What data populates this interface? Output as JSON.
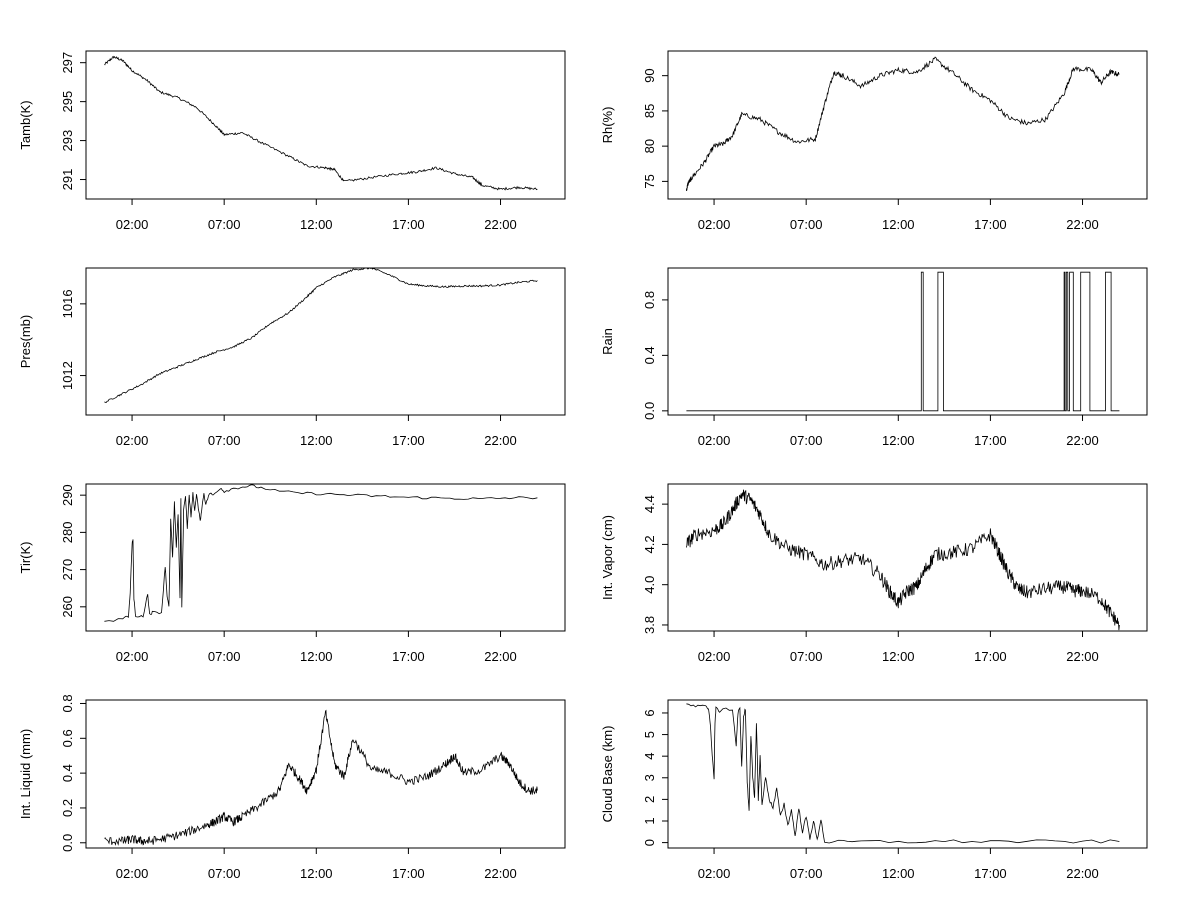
{
  "chart_data": [
    {
      "type": "line",
      "ylabel": "Tamb(K)",
      "xlim": [
        -0.5,
        25.5
      ],
      "ylim": [
        290.0,
        297.6
      ],
      "x_ticks": [
        2,
        7,
        12,
        17,
        22
      ],
      "x_tick_labels": [
        "02:00",
        "07:00",
        "12:00",
        "17:00",
        "22:00"
      ],
      "y_ticks": [
        291,
        293,
        295,
        297
      ],
      "y_tick_labels": [
        "291",
        "293",
        "295",
        "297"
      ],
      "noise": 0.06,
      "steps": 20,
      "series": [
        {
          "x": [
            0.5,
            1.0,
            1.5,
            2.0,
            2.8,
            3.5,
            4.5,
            5.5,
            6.5,
            7.0,
            8.0,
            9.0,
            10.5,
            11.5,
            12.5,
            13.0,
            13.5,
            15.0,
            16.5,
            17.5,
            18.5,
            19.5,
            20.5,
            21.0,
            22.0,
            23.0,
            24.0
          ],
          "values": [
            296.9,
            297.3,
            297.1,
            296.6,
            296.1,
            295.5,
            295.2,
            294.7,
            293.8,
            293.3,
            293.4,
            292.9,
            292.2,
            291.7,
            291.6,
            291.5,
            290.9,
            291.1,
            291.3,
            291.4,
            291.6,
            291.3,
            291.1,
            290.7,
            290.5,
            290.6,
            290.5
          ]
        }
      ]
    },
    {
      "type": "line",
      "ylabel": "Rh(%)",
      "xlim": [
        -0.5,
        25.5
      ],
      "ylim": [
        72.5,
        93.5
      ],
      "x_ticks": [
        2,
        7,
        12,
        17,
        22
      ],
      "x_tick_labels": [
        "02:00",
        "07:00",
        "12:00",
        "17:00",
        "22:00"
      ],
      "y_ticks": [
        75,
        80,
        85,
        90
      ],
      "y_tick_labels": [
        "75",
        "80",
        "85",
        "90"
      ],
      "noise": 0.35,
      "steps": 20,
      "series": [
        {
          "x": [
            0.5,
            0.6,
            0.8,
            1.5,
            2.0,
            2.5,
            3.0,
            3.5,
            4.5,
            5.5,
            6.5,
            7.5,
            8.0,
            8.5,
            9.0,
            10.0,
            11.0,
            12.0,
            13.0,
            14.0,
            15.0,
            16.0,
            17.0,
            18.0,
            19.0,
            20.0,
            21.0,
            21.5,
            22.5,
            23.0,
            23.5,
            24.0
          ],
          "values": [
            73.8,
            74.8,
            75.5,
            77.8,
            80.0,
            80.3,
            81.5,
            84.5,
            83.8,
            82.0,
            80.6,
            81.0,
            86.0,
            90.5,
            90.0,
            88.5,
            90.0,
            90.8,
            90.5,
            92.3,
            90.3,
            88.0,
            86.5,
            84.0,
            83.2,
            83.8,
            87.5,
            91.0,
            90.8,
            89.0,
            90.5,
            90.2
          ]
        }
      ]
    },
    {
      "type": "line",
      "ylabel": "Pres(mb)",
      "xlim": [
        -0.5,
        25.5
      ],
      "ylim": [
        1009.8,
        1018.0
      ],
      "x_ticks": [
        2,
        7,
        12,
        17,
        22
      ],
      "x_tick_labels": [
        "02:00",
        "07:00",
        "12:00",
        "17:00",
        "22:00"
      ],
      "y_ticks": [
        1012,
        1016
      ],
      "y_tick_labels": [
        "1012",
        "1016"
      ],
      "noise": 0.05,
      "steps": 20,
      "series": [
        {
          "x": [
            0.5,
            1.5,
            2.5,
            3.5,
            4.5,
            5.5,
            6.5,
            7.5,
            8.5,
            9.5,
            10.5,
            11.5,
            12.0,
            13.0,
            14.0,
            15.0,
            16.0,
            17.0,
            18.0,
            19.0,
            20.0,
            21.0,
            22.0,
            23.0,
            24.0
          ],
          "values": [
            1010.5,
            1011.0,
            1011.5,
            1012.1,
            1012.5,
            1012.9,
            1013.3,
            1013.6,
            1014.1,
            1014.9,
            1015.5,
            1016.4,
            1016.9,
            1017.5,
            1017.9,
            1018.0,
            1017.6,
            1017.1,
            1017.0,
            1016.95,
            1017.0,
            1017.0,
            1017.05,
            1017.2,
            1017.3
          ]
        }
      ]
    },
    {
      "type": "line",
      "ylabel": "Rain",
      "xlim": [
        -0.5,
        25.5
      ],
      "ylim": [
        -0.03,
        1.03
      ],
      "x_ticks": [
        2,
        7,
        12,
        17,
        22
      ],
      "x_tick_labels": [
        "02:00",
        "07:00",
        "12:00",
        "17:00",
        "22:00"
      ],
      "y_ticks": [
        0.0,
        0.4,
        0.8
      ],
      "y_tick_labels": [
        "0.0",
        "0.4",
        "0.8"
      ],
      "noise": 0,
      "steps": 0,
      "series": [
        {
          "x": [
            0.5,
            13.25,
            13.25,
            13.35,
            13.35,
            14.15,
            14.15,
            14.45,
            14.45,
            21.0,
            21.0,
            21.05,
            21.05,
            21.12,
            21.12,
            21.2,
            21.2,
            21.3,
            21.3,
            21.5,
            21.5,
            21.9,
            21.9,
            22.4,
            22.4,
            23.25,
            23.25,
            23.55,
            23.55,
            24.0
          ],
          "values": [
            0,
            0,
            1,
            1,
            0,
            0,
            1,
            1,
            0,
            0,
            1,
            1,
            0,
            0,
            1,
            1,
            0,
            0,
            1,
            1,
            0,
            0,
            1,
            1,
            0,
            0,
            1,
            1,
            0,
            0
          ]
        }
      ]
    },
    {
      "type": "line",
      "ylabel": "Tir(K)",
      "xlim": [
        -0.5,
        25.5
      ],
      "ylim": [
        253.5,
        293.0
      ],
      "x_ticks": [
        2,
        7,
        12,
        17,
        22
      ],
      "x_tick_labels": [
        "02:00",
        "07:00",
        "12:00",
        "17:00",
        "22:00"
      ],
      "y_ticks": [
        260,
        270,
        280,
        290
      ],
      "y_tick_labels": [
        "260",
        "270",
        "280",
        "290"
      ],
      "noise": 0.35,
      "steps": 4,
      "series": [
        {
          "x": [
            0.5,
            1.5,
            1.8,
            1.9,
            2.0,
            2.05,
            2.1,
            2.2,
            2.6,
            2.85,
            2.95,
            3.1,
            3.6,
            3.8,
            3.9,
            4.0,
            4.1,
            4.2,
            4.3,
            4.4,
            4.5,
            4.6,
            4.65,
            4.7,
            4.8,
            4.9,
            5.0,
            5.1,
            5.2,
            5.3,
            5.4,
            5.5,
            5.7,
            5.8,
            5.9,
            6.0,
            6.2,
            6.4,
            6.8,
            7.0,
            7.5,
            8.0,
            8.5,
            9.0,
            10.0,
            11.0,
            12.0,
            13.0,
            14.0,
            15.0,
            16.0,
            17.0,
            18.0,
            19.0,
            20.0,
            21.0,
            22.0,
            23.0,
            24.0
          ],
          "values": [
            255.8,
            257.0,
            257.2,
            264.0,
            277.0,
            278.0,
            262.0,
            257.2,
            257.5,
            263.5,
            258.0,
            258.5,
            258.5,
            271.0,
            263.0,
            260.0,
            283.5,
            273.0,
            288.0,
            276.0,
            285.0,
            262.0,
            289.0,
            260.0,
            286.0,
            290.0,
            281.0,
            290.0,
            284.0,
            290.5,
            286.0,
            290.0,
            283.0,
            287.0,
            290.5,
            287.5,
            290.5,
            290.0,
            292.0,
            291.0,
            291.8,
            292.2,
            292.5,
            292.0,
            291.0,
            290.6,
            290.4,
            290.2,
            290.0,
            289.8,
            289.6,
            289.4,
            289.3,
            289.2,
            289.1,
            289.0,
            289.2,
            289.3,
            289.3
          ]
        }
      ]
    },
    {
      "type": "line",
      "ylabel": "Int. Vapor (cm)",
      "xlim": [
        -0.5,
        25.5
      ],
      "ylim": [
        3.77,
        4.5
      ],
      "x_ticks": [
        2,
        7,
        12,
        17,
        22
      ],
      "x_tick_labels": [
        "02:00",
        "07:00",
        "12:00",
        "17:00",
        "22:00"
      ],
      "y_ticks": [
        3.8,
        4.0,
        4.2,
        4.4
      ],
      "y_tick_labels": [
        "3.8",
        "4.0",
        "4.2",
        "4.4"
      ],
      "noise": 0.035,
      "steps": 20,
      "series": [
        {
          "x": [
            0.5,
            1.0,
            2.0,
            2.5,
            3.0,
            3.5,
            4.0,
            4.5,
            5.0,
            6.0,
            7.0,
            8.0,
            9.0,
            10.0,
            11.0,
            11.5,
            12.0,
            12.5,
            13.0,
            13.5,
            14.0,
            15.0,
            16.0,
            17.0,
            17.5,
            18.0,
            18.5,
            19.0,
            20.0,
            21.0,
            21.5,
            22.0,
            23.0,
            23.5,
            24.0
          ],
          "values": [
            4.2,
            4.25,
            4.27,
            4.3,
            4.37,
            4.45,
            4.42,
            4.35,
            4.25,
            4.18,
            4.15,
            4.1,
            4.12,
            4.13,
            4.05,
            3.97,
            3.91,
            3.97,
            3.99,
            4.08,
            4.15,
            4.16,
            4.18,
            4.25,
            4.15,
            4.05,
            3.98,
            3.96,
            3.98,
            3.99,
            3.97,
            3.97,
            3.93,
            3.86,
            3.8
          ]
        }
      ]
    },
    {
      "type": "line",
      "ylabel": "Int. Liquid (mm)",
      "xlim": [
        -0.5,
        25.5
      ],
      "ylim": [
        -0.03,
        0.82
      ],
      "x_ticks": [
        2,
        7,
        12,
        17,
        22
      ],
      "x_tick_labels": [
        "02:00",
        "07:00",
        "12:00",
        "17:00",
        "22:00"
      ],
      "y_ticks": [
        0.0,
        0.2,
        0.4,
        0.6,
        0.8
      ],
      "y_tick_labels": [
        "0.0",
        "0.2",
        "0.4",
        "0.6",
        "0.8"
      ],
      "noise": 0.025,
      "steps": 20,
      "series": [
        {
          "x": [
            0.5,
            1.5,
            2.0,
            2.5,
            3.0,
            4.0,
            5.0,
            6.0,
            6.5,
            7.0,
            7.5,
            8.0,
            9.0,
            10.0,
            10.5,
            11.0,
            11.5,
            12.0,
            12.5,
            13.0,
            13.5,
            14.0,
            15.0,
            16.0,
            17.0,
            18.0,
            19.0,
            19.5,
            20.0,
            21.0,
            22.0,
            22.5,
            23.0,
            23.5,
            24.0
          ],
          "values": [
            0.01,
            0.01,
            0.02,
            0.01,
            0.01,
            0.03,
            0.06,
            0.1,
            0.12,
            0.15,
            0.12,
            0.15,
            0.22,
            0.3,
            0.45,
            0.38,
            0.3,
            0.42,
            0.75,
            0.45,
            0.38,
            0.6,
            0.42,
            0.4,
            0.35,
            0.38,
            0.45,
            0.5,
            0.4,
            0.42,
            0.5,
            0.45,
            0.35,
            0.3,
            0.3
          ]
        }
      ]
    },
    {
      "type": "line",
      "ylabel": "Cloud Base (km)",
      "xlim": [
        -0.5,
        25.5
      ],
      "ylim": [
        -0.25,
        6.6
      ],
      "x_ticks": [
        2,
        7,
        12,
        17,
        22
      ],
      "x_tick_labels": [
        "02:00",
        "07:00",
        "12:00",
        "17:00",
        "22:00"
      ],
      "y_ticks": [
        0,
        1,
        2,
        3,
        4,
        5,
        6
      ],
      "y_tick_labels": [
        "0",
        "1",
        "2",
        "3",
        "4",
        "5",
        "6"
      ],
      "noise": 0.08,
      "steps": 4,
      "series": [
        {
          "x": [
            0.5,
            1.0,
            1.5,
            1.7,
            1.8,
            1.9,
            2.0,
            2.05,
            2.1,
            2.3,
            3.0,
            3.2,
            3.3,
            3.4,
            3.5,
            3.6,
            3.7,
            3.8,
            3.9,
            4.0,
            4.1,
            4.2,
            4.3,
            4.4,
            4.5,
            4.6,
            4.8,
            5.0,
            5.2,
            5.4,
            5.6,
            5.8,
            6.0,
            6.2,
            6.4,
            6.6,
            6.8,
            7.0,
            7.2,
            7.4,
            7.6,
            7.8,
            8.0,
            9.0,
            10.0,
            12.0,
            14.0,
            16.0,
            18.0,
            20.0,
            22.0,
            24.0
          ],
          "values": [
            6.4,
            6.3,
            6.3,
            6.2,
            5.5,
            4.0,
            3.0,
            5.5,
            6.2,
            6.1,
            6.2,
            4.5,
            6.0,
            6.2,
            3.5,
            5.8,
            6.2,
            2.8,
            1.5,
            5.0,
            3.0,
            2.0,
            5.6,
            2.0,
            4.0,
            1.8,
            3.0,
            2.0,
            1.6,
            2.5,
            1.2,
            1.8,
            0.8,
            1.5,
            0.3,
            1.6,
            0.5,
            1.2,
            0.2,
            1.0,
            0.1,
            1.1,
            0.03,
            0.03,
            0.04,
            0.04,
            0.05,
            0.06,
            0.05,
            0.05,
            0.04,
            0.05
          ]
        }
      ]
    }
  ]
}
